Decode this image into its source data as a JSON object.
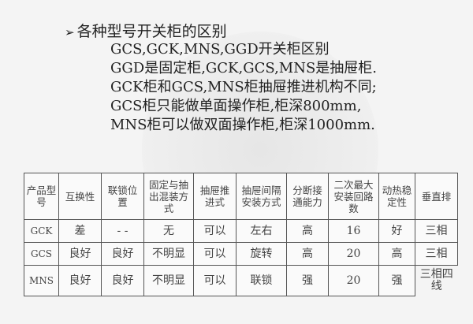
{
  "heading": {
    "bullet_icon": "arrow-bullet",
    "text": "各种型号开关柜的区别"
  },
  "lines": [
    "GCS,GCK,MNS,GGD开关柜区别",
    "GGD是固定柜,GCK,GCS,MNS是抽屉柜.",
    "GCK柜和GCS,MNS柜抽屉推进机构不同;",
    "GCS柜只能做单面操作柜,柜深800mm,",
    "MNS柜可以做双面操作柜,柜深1000mm."
  ],
  "table": {
    "headers": [
      "产品型号",
      "互换性",
      "联锁位置",
      "固定与抽出混装方式",
      "抽屉推进式",
      "抽屉间隔安装方式",
      "分断接通能力",
      "二次最大安装回路数",
      "动热稳定性",
      "垂直排"
    ],
    "rows": [
      [
        "GCK",
        "差",
        "- -",
        "无",
        "可以",
        "左右",
        "高",
        "16",
        "好",
        "三相"
      ],
      [
        "GCS",
        "良好",
        "良好",
        "不明显",
        "可以",
        "旋转",
        "高",
        "20",
        "高",
        "三相"
      ],
      [
        "MNS",
        "良好",
        "良好",
        "不明显",
        "可以",
        "联锁",
        "强",
        "20",
        "强",
        "三相四线"
      ]
    ]
  }
}
